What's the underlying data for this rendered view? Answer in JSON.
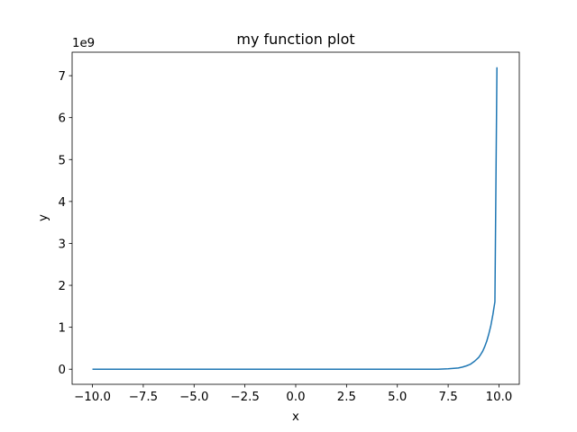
{
  "chart_data": {
    "type": "line",
    "title": "my function plot",
    "xlabel": "x",
    "ylabel": "y",
    "y_offset_label": "1e9",
    "xlim": [
      -11.0,
      11.0
    ],
    "ylim": [
      -0.36,
      7.56
    ],
    "y_scale_factor": 1000000000,
    "x_ticks": [
      -10.0,
      -7.5,
      -5.0,
      -2.5,
      0.0,
      2.5,
      5.0,
      7.5,
      10.0
    ],
    "x_tick_labels": [
      "−10.0",
      "−7.5",
      "−5.0",
      "−2.5",
      "0.0",
      "2.5",
      "5.0",
      "7.5",
      "10.0"
    ],
    "y_ticks": [
      0,
      1,
      2,
      3,
      4,
      5,
      6,
      7
    ],
    "y_tick_labels": [
      "0",
      "1",
      "2",
      "3",
      "4",
      "5",
      "6",
      "7"
    ],
    "grid": false,
    "legend": "none",
    "series": [
      {
        "color": "#1f77b4",
        "x": [
          -10.0,
          -8.0,
          -6.0,
          -4.0,
          -2.0,
          0.0,
          2.0,
          4.0,
          6.0,
          7.0,
          7.5,
          8.0,
          8.2,
          8.4,
          8.6,
          8.8,
          9.0,
          9.1,
          9.2,
          9.3,
          9.4,
          9.5,
          9.6,
          9.7,
          9.8,
          9.9
        ],
        "y": [
          0.0,
          0.0,
          0.0,
          0.0,
          0.0,
          0.0,
          0.0,
          0.0,
          0.0,
          0.0,
          0.01,
          0.03,
          0.05,
          0.08,
          0.12,
          0.19,
          0.28,
          0.35,
          0.43,
          0.54,
          0.67,
          0.84,
          1.04,
          1.3,
          1.61,
          7.2
        ]
      }
    ]
  }
}
